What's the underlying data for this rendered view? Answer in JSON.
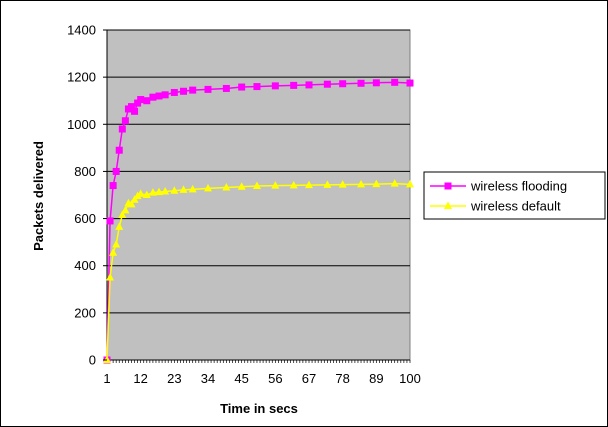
{
  "chart_data": {
    "type": "line",
    "title": "",
    "xlabel": "Time in secs",
    "ylabel": "Packets delivered",
    "x_tick_labels": [
      "1",
      "12",
      "23",
      "34",
      "45",
      "56",
      "67",
      "78",
      "89",
      "100"
    ],
    "x_range": [
      1,
      100
    ],
    "ylim": [
      0,
      1400
    ],
    "y_ticks": [
      0,
      200,
      400,
      600,
      800,
      1000,
      1200,
      1400
    ],
    "grid": "horizontal",
    "plot_background": "#c0c0c0",
    "legend_position": "right",
    "series": [
      {
        "name": "wireless flooding",
        "color": "#ff00ff",
        "marker": "square",
        "x": [
          1,
          2,
          3,
          4,
          5,
          6,
          7,
          8,
          9,
          10,
          11,
          12,
          14,
          16,
          18,
          20,
          23,
          26,
          29,
          34,
          40,
          45,
          50,
          56,
          62,
          67,
          73,
          78,
          84,
          89,
          95,
          100
        ],
        "values": [
          0,
          590,
          740,
          800,
          890,
          980,
          1015,
          1065,
          1075,
          1055,
          1090,
          1105,
          1100,
          1115,
          1120,
          1125,
          1135,
          1140,
          1145,
          1148,
          1152,
          1158,
          1160,
          1163,
          1165,
          1167,
          1170,
          1172,
          1174,
          1176,
          1178,
          1175
        ]
      },
      {
        "name": "wireless default",
        "color": "#ffff00",
        "marker": "triangle",
        "x": [
          1,
          2,
          3,
          4,
          5,
          6,
          7,
          8,
          9,
          10,
          11,
          12,
          14,
          16,
          18,
          20,
          23,
          26,
          29,
          34,
          40,
          45,
          50,
          56,
          62,
          67,
          73,
          78,
          84,
          89,
          95,
          100
        ],
        "values": [
          0,
          350,
          455,
          490,
          565,
          615,
          635,
          665,
          660,
          680,
          695,
          705,
          700,
          710,
          712,
          715,
          718,
          722,
          724,
          728,
          732,
          735,
          738,
          740,
          741,
          742,
          743,
          744,
          745,
          746,
          748,
          745
        ]
      }
    ]
  }
}
